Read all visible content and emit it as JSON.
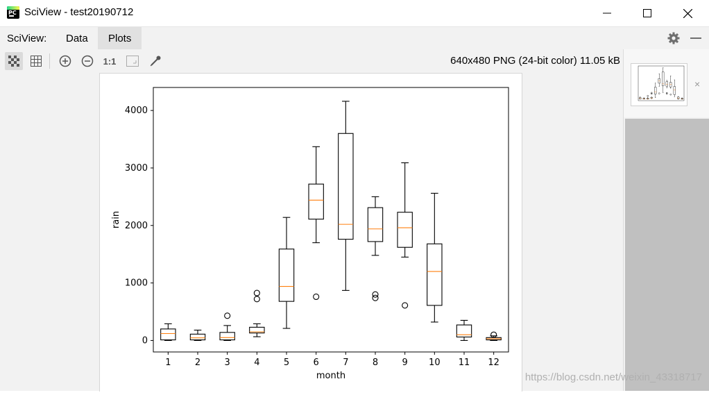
{
  "window": {
    "app_icon_text": "PC",
    "title": "SciView - test20190712",
    "minimize_glyph": "—",
    "maximize_glyph": "☐",
    "close_glyph": "✕"
  },
  "menubar": {
    "label": "SciView:",
    "tabs": [
      {
        "label": "Data",
        "active": false
      },
      {
        "label": "Plots",
        "active": true
      }
    ],
    "right_icons": [
      "gear-icon",
      "minimize-panel-icon"
    ]
  },
  "toolbar": {
    "buttons": [
      {
        "name": "checkerboard-icon",
        "active": true
      },
      {
        "name": "grid-icon",
        "active": false
      },
      {
        "name": "zoom-in-icon",
        "active": false
      },
      {
        "name": "zoom-out-icon",
        "active": false
      },
      {
        "name": "actual-size-icon",
        "label": "1:1",
        "active": false
      },
      {
        "name": "fit-icon",
        "active": false
      },
      {
        "name": "color-picker-icon",
        "active": false
      }
    ],
    "image_info": "640x480 PNG (24-bit color) 11.05 kB"
  },
  "colors": {
    "median": "#ff7f0e",
    "box": "#000000",
    "panel_bg": "#f2f2f2",
    "side_gray": "#c0c0c0"
  },
  "chart_data": {
    "type": "box",
    "xlabel": "month",
    "ylabel": "rain",
    "ylim": [
      -200,
      4400
    ],
    "yticks": [
      0,
      1000,
      2000,
      3000,
      4000
    ],
    "categories": [
      "1",
      "2",
      "3",
      "4",
      "5",
      "6",
      "7",
      "8",
      "9",
      "10",
      "11",
      "12"
    ],
    "boxes": [
      {
        "whislo": 0,
        "q1": 10,
        "med": 120,
        "q3": 200,
        "whishi": 290,
        "fliers": []
      },
      {
        "whislo": 0,
        "q1": 10,
        "med": 45,
        "q3": 110,
        "whishi": 180,
        "fliers": []
      },
      {
        "whislo": 0,
        "q1": 10,
        "med": 50,
        "q3": 140,
        "whishi": 260,
        "fliers": [
          430
        ]
      },
      {
        "whislo": 65,
        "q1": 130,
        "med": 150,
        "q3": 230,
        "whishi": 290,
        "fliers": [
          720,
          825
        ]
      },
      {
        "whislo": 210,
        "q1": 680,
        "med": 940,
        "q3": 1590,
        "whishi": 2140,
        "fliers": []
      },
      {
        "whislo": 1700,
        "q1": 2110,
        "med": 2440,
        "q3": 2720,
        "whishi": 3370,
        "fliers": [
          760
        ]
      },
      {
        "whislo": 870,
        "q1": 1760,
        "med": 2020,
        "q3": 3600,
        "whishi": 4160,
        "fliers": []
      },
      {
        "whislo": 1480,
        "q1": 1720,
        "med": 1940,
        "q3": 2310,
        "whishi": 2500,
        "fliers": [
          740,
          800
        ]
      },
      {
        "whislo": 1450,
        "q1": 1620,
        "med": 1960,
        "q3": 2230,
        "whishi": 3090,
        "fliers": [
          610
        ]
      },
      {
        "whislo": 320,
        "q1": 610,
        "med": 1200,
        "q3": 1680,
        "whishi": 2560,
        "fliers": []
      },
      {
        "whislo": 0,
        "q1": 60,
        "med": 100,
        "q3": 270,
        "whishi": 350,
        "fliers": []
      },
      {
        "whislo": 0,
        "q1": 10,
        "med": 30,
        "q3": 50,
        "whishi": 80,
        "fliers": [
          100
        ]
      }
    ]
  },
  "side_panel": {
    "thumbnail_close_glyph": "×"
  },
  "watermark": "https://blog.csdn.net/weixin_43318717"
}
